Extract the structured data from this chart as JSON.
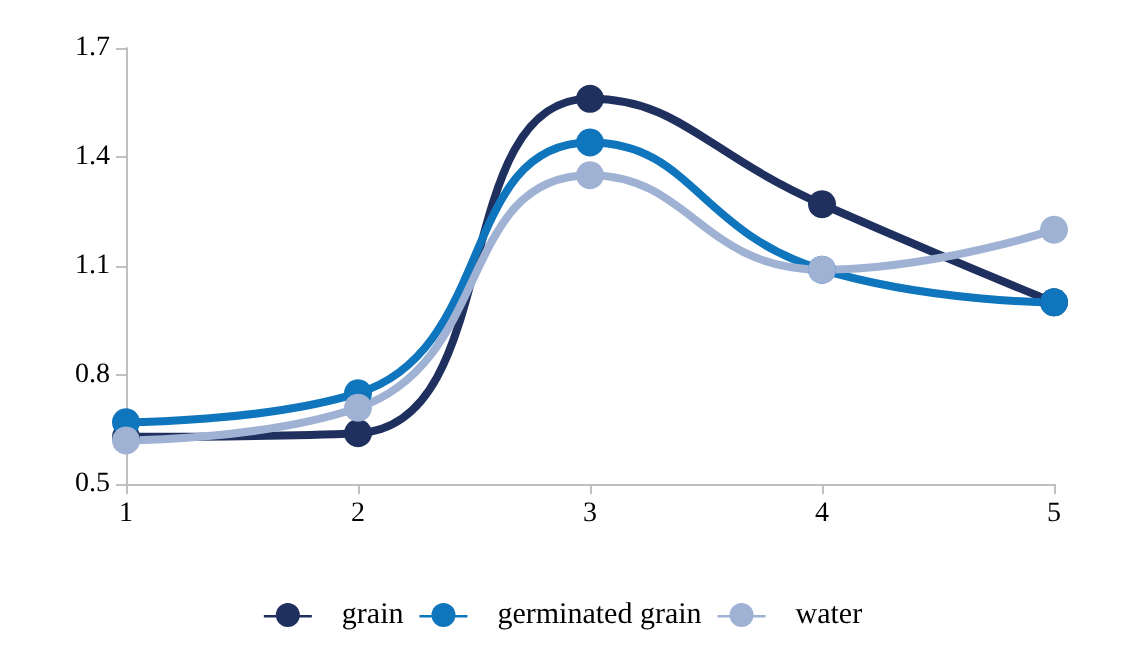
{
  "chart_data": {
    "type": "line",
    "x": [
      1,
      2,
      3,
      4,
      5
    ],
    "xlim": [
      1,
      5
    ],
    "xticks": [
      1,
      2,
      3,
      4,
      5
    ],
    "ylim": [
      0.5,
      1.7
    ],
    "yticks": [
      0.5,
      0.8,
      1.1,
      1.4,
      1.7
    ],
    "grid": false,
    "legend": "bottom",
    "marker": "circle",
    "line_style": "solid",
    "series": [
      {
        "name": "grain",
        "color": "#1f2f5e",
        "values": [
          0.63,
          0.64,
          1.56,
          1.27,
          1.0
        ]
      },
      {
        "name": "germinated grain",
        "color": "#0f75bd",
        "values": [
          0.67,
          0.75,
          1.44,
          1.09,
          1.0
        ]
      },
      {
        "name": "water",
        "color": "#9fb2d4",
        "values": [
          0.62,
          0.71,
          1.35,
          1.09,
          1.2
        ]
      }
    ]
  }
}
